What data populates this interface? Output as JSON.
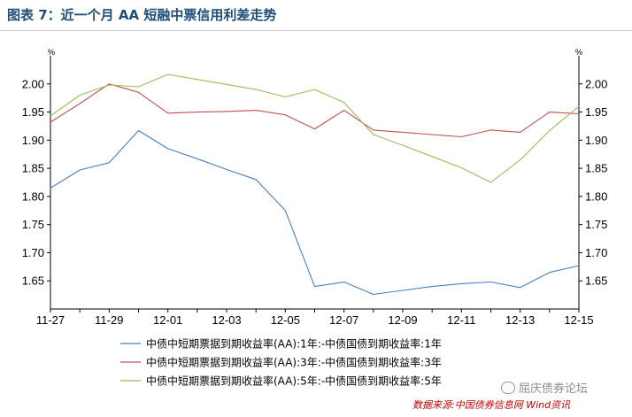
{
  "title": "图表 7：近一个月 AA 短融中票信用利差走势",
  "unit": "%",
  "watermark": "屈庆债券论坛",
  "source": "数据来源:中国债券信息网  Wind资讯",
  "colors": {
    "series1": "#4a7ebb",
    "series2": "#c0504d",
    "series3": "#9bbb59",
    "title": "#1f4e79",
    "source": "#c00000"
  },
  "chart_data": {
    "type": "line",
    "x": [
      "11-27",
      "11-28",
      "11-29",
      "11-30",
      "12-01",
      "12-02",
      "12-03",
      "12-04",
      "12-05",
      "12-06",
      "12-07",
      "12-08",
      "12-09",
      "12-10",
      "12-11",
      "12-12",
      "12-13",
      "12-14",
      "12-15"
    ],
    "x_tick_labels": [
      "11-27",
      "11-29",
      "12-01",
      "12-03",
      "12-05",
      "12-07",
      "12-09",
      "12-11",
      "12-13",
      "12-15"
    ],
    "ylim": [
      1.6,
      2.05
    ],
    "y_ticks": [
      "1.65",
      "1.70",
      "1.75",
      "1.80",
      "1.85",
      "1.90",
      "1.95",
      "2.00"
    ],
    "y_tick_values": [
      1.65,
      1.7,
      1.75,
      1.8,
      1.85,
      1.9,
      1.95,
      2.0
    ],
    "ylabel_left": "%",
    "ylabel_right": "%",
    "grid": false,
    "legend_position": "bottom",
    "series": [
      {
        "name": "中债中短期票据到期收益率(AA):1年:-中债国债到期收益率:1年",
        "values": [
          1.815,
          1.847,
          1.86,
          1.917,
          1.885,
          1.867,
          1.848,
          1.83,
          1.775,
          1.64,
          1.648,
          1.626,
          1.633,
          1.64,
          1.645,
          1.648,
          1.638,
          1.665,
          1.677
        ]
      },
      {
        "name": "中债中短期票据到期收益率(AA):3年:-中债国债到期收益率:3年",
        "values": [
          1.932,
          1.965,
          2.0,
          1.985,
          1.948,
          1.95,
          1.951,
          1.953,
          1.945,
          1.92,
          1.953,
          1.918,
          1.914,
          1.91,
          1.906,
          1.918,
          1.914,
          1.95,
          1.947
        ]
      },
      {
        "name": "中债中短期票据到期收益率(AA):5年:-中债国债到期收益率:5年",
        "values": [
          1.943,
          1.98,
          1.998,
          1.995,
          2.017,
          2.008,
          1.999,
          1.99,
          1.977,
          1.99,
          1.967,
          1.91,
          1.891,
          1.871,
          1.851,
          1.825,
          1.865,
          1.917,
          1.96
        ]
      }
    ]
  }
}
